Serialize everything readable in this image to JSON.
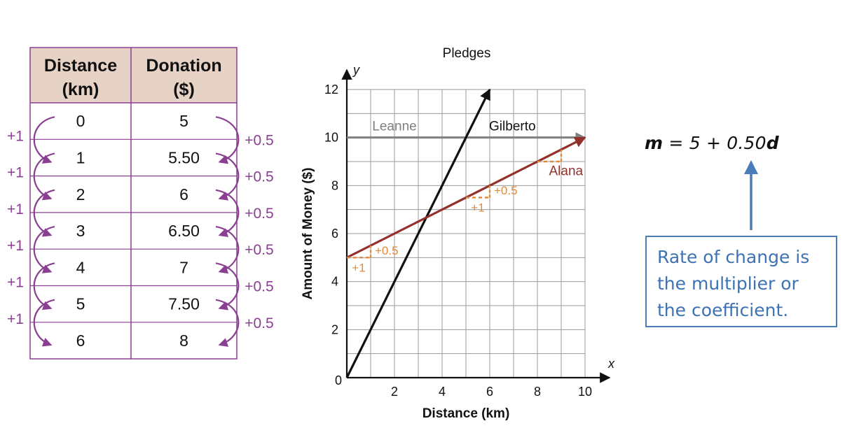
{
  "table": {
    "headers": [
      {
        "line1": "Distance",
        "line2": "(km)"
      },
      {
        "line1": "Donation",
        "line2": "($)"
      }
    ],
    "rows": [
      {
        "distance": "0",
        "donation": "5"
      },
      {
        "distance": "1",
        "donation": "5.50"
      },
      {
        "distance": "2",
        "donation": "6"
      },
      {
        "distance": "3",
        "donation": "6.50"
      },
      {
        "distance": "4",
        "donation": "7"
      },
      {
        "distance": "5",
        "donation": "7.50"
      },
      {
        "distance": "6",
        "donation": "8"
      }
    ],
    "left_step_label": "+1",
    "right_step_label": "+0.5",
    "colors": {
      "purple": "#8b3f92",
      "header_bg": "#e7d3c6"
    }
  },
  "chart_data": {
    "type": "line",
    "title": "Pledges",
    "xlabel": "Distance (km)",
    "ylabel": "Amount of Money ($)",
    "x_axis_letter": "x",
    "y_axis_letter": "y",
    "origin_label": "0",
    "xlim": [
      0,
      10
    ],
    "ylim": [
      0,
      12
    ],
    "x_ticks": [
      2,
      4,
      6,
      8,
      10
    ],
    "y_ticks": [
      2,
      4,
      6,
      8,
      10,
      12
    ],
    "grid": true,
    "series": [
      {
        "name": "Leanne",
        "color": "#7f7f7f",
        "points": [
          [
            0,
            10
          ],
          [
            10,
            10
          ]
        ]
      },
      {
        "name": "Gilberto",
        "color": "#111111",
        "points": [
          [
            0,
            0
          ],
          [
            6,
            12
          ]
        ]
      },
      {
        "name": "Alana",
        "color": "#93302b",
        "points": [
          [
            0,
            5
          ],
          [
            10,
            10
          ]
        ]
      }
    ],
    "slope_annotations": [
      {
        "x": 0,
        "y": 5,
        "run_label": "+1",
        "rise_label": "+0.5"
      },
      {
        "x": 5,
        "y": 7.5,
        "run_label": "+1",
        "rise_label": "+0.5"
      },
      {
        "x": 8,
        "y": 9,
        "run_label": "",
        "rise_label": ""
      }
    ],
    "annotation_color": "#e08a3c"
  },
  "formula": {
    "lhs": "m",
    "middle": " = 5 + 0.50",
    "var": "d"
  },
  "callout": {
    "lines": [
      "Rate of change is",
      "the multiplier or",
      "the coefficient."
    ],
    "color": "#3e72b3"
  }
}
